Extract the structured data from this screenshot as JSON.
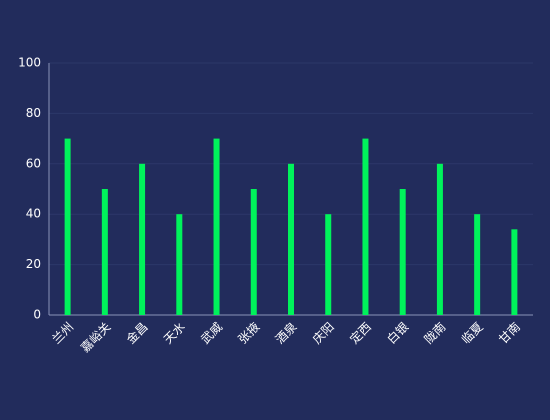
{
  "chart_data": {
    "type": "bar",
    "categories": [
      "兰州",
      "嘉峪关",
      "金昌",
      "天水",
      "武威",
      "张掖",
      "酒泉",
      "庆阳",
      "定西",
      "白银",
      "陇南",
      "临夏",
      "甘南"
    ],
    "values": [
      70,
      50,
      60,
      40,
      70,
      50,
      60,
      40,
      70,
      50,
      60,
      40,
      34
    ],
    "color": "#00f35b",
    "ylim": [
      0,
      100
    ],
    "yticks": [
      0,
      20,
      40,
      60,
      80,
      100
    ],
    "grid": true
  }
}
